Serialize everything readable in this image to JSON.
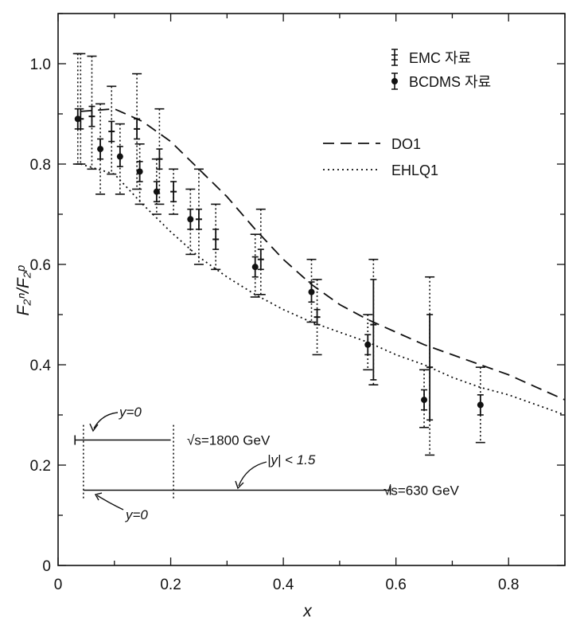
{
  "chart_data": {
    "type": "scatter",
    "xlabel": "x",
    "ylabel": "F₂ⁿ/F₂ᵖ",
    "xlim": [
      0,
      0.9
    ],
    "ylim": [
      0,
      1.1
    ],
    "x_ticks": [
      "0",
      "0.2",
      "0.4",
      "0.6",
      "0.8"
    ],
    "y_ticks": [
      "0",
      "0.2",
      "0.4",
      "0.6",
      "0.8",
      "1.0"
    ],
    "grid": false,
    "legend_position": "top-right",
    "series": [
      {
        "name": "EMC 자료",
        "marker": "bar",
        "points": [
          {
            "x": 0.04,
            "y": 0.89,
            "stat": [
              0.87,
              0.91
            ],
            "sys": [
              0.8,
              1.02
            ]
          },
          {
            "x": 0.06,
            "y": 0.895,
            "stat": [
              0.875,
              0.915
            ],
            "sys": [
              0.79,
              1.015
            ]
          },
          {
            "x": 0.095,
            "y": 0.865,
            "stat": [
              0.845,
              0.885
            ],
            "sys": [
              0.78,
              0.955
            ]
          },
          {
            "x": 0.14,
            "y": 0.87,
            "stat": [
              0.85,
              0.89
            ],
            "sys": [
              0.75,
              0.98
            ]
          },
          {
            "x": 0.18,
            "y": 0.81,
            "stat": [
              0.79,
              0.83
            ],
            "sys": [
              0.72,
              0.91
            ]
          },
          {
            "x": 0.205,
            "y": 0.745,
            "stat": [
              0.725,
              0.765
            ],
            "sys": [
              0.7,
              0.79
            ]
          },
          {
            "x": 0.25,
            "y": 0.69,
            "stat": [
              0.67,
              0.71
            ],
            "sys": [
              0.6,
              0.79
            ]
          },
          {
            "x": 0.28,
            "y": 0.65,
            "stat": [
              0.63,
              0.67
            ],
            "sys": [
              0.59,
              0.72
            ]
          },
          {
            "x": 0.36,
            "y": 0.61,
            "stat": [
              0.59,
              0.63
            ],
            "sys": [
              0.54,
              0.71
            ]
          },
          {
            "x": 0.46,
            "y": 0.495,
            "stat": [
              0.48,
              0.51
            ],
            "sys": [
              0.42,
              0.57
            ]
          },
          {
            "x": 0.56,
            "y": 0.48,
            "stat": [
              0.37,
              0.57
            ],
            "sys": [
              0.36,
              0.61
            ]
          },
          {
            "x": 0.66,
            "y": 0.395,
            "stat": [
              0.29,
              0.5
            ],
            "sys": [
              0.22,
              0.575
            ]
          }
        ]
      },
      {
        "name": "BCDMS 자료",
        "marker": "dot",
        "points": [
          {
            "x": 0.035,
            "y": 0.89,
            "stat": [
              0.87,
              0.91
            ],
            "sys": [
              0.8,
              1.02
            ]
          },
          {
            "x": 0.075,
            "y": 0.83,
            "stat": [
              0.81,
              0.85
            ],
            "sys": [
              0.74,
              0.92
            ]
          },
          {
            "x": 0.11,
            "y": 0.815,
            "stat": [
              0.795,
              0.835
            ],
            "sys": [
              0.74,
              0.88
            ]
          },
          {
            "x": 0.145,
            "y": 0.785,
            "stat": [
              0.765,
              0.805
            ],
            "sys": [
              0.72,
              0.84
            ]
          },
          {
            "x": 0.175,
            "y": 0.745,
            "stat": [
              0.725,
              0.765
            ],
            "sys": [
              0.7,
              0.81
            ]
          },
          {
            "x": 0.235,
            "y": 0.69,
            "stat": [
              0.67,
              0.71
            ],
            "sys": [
              0.62,
              0.75
            ]
          },
          {
            "x": 0.35,
            "y": 0.595,
            "stat": [
              0.575,
              0.615
            ],
            "sys": [
              0.535,
              0.66
            ]
          },
          {
            "x": 0.45,
            "y": 0.545,
            "stat": [
              0.525,
              0.565
            ],
            "sys": [
              0.485,
              0.61
            ]
          },
          {
            "x": 0.55,
            "y": 0.44,
            "stat": [
              0.42,
              0.46
            ],
            "sys": [
              0.39,
              0.5
            ]
          },
          {
            "x": 0.65,
            "y": 0.33,
            "stat": [
              0.31,
              0.35
            ],
            "sys": [
              0.275,
              0.39
            ]
          },
          {
            "x": 0.75,
            "y": 0.32,
            "stat": [
              0.3,
              0.34
            ],
            "sys": [
              0.245,
              0.395
            ]
          }
        ]
      },
      {
        "name": "DO1",
        "type": "line",
        "style": "dashed",
        "x": [
          0.04,
          0.1,
          0.15,
          0.2,
          0.25,
          0.3,
          0.35,
          0.4,
          0.45,
          0.5,
          0.55,
          0.6,
          0.65,
          0.7,
          0.75,
          0.8,
          0.85,
          0.9
        ],
        "y": [
          0.905,
          0.91,
          0.885,
          0.845,
          0.79,
          0.735,
          0.67,
          0.61,
          0.56,
          0.52,
          0.49,
          0.465,
          0.44,
          0.42,
          0.4,
          0.38,
          0.355,
          0.33
        ]
      },
      {
        "name": "EHLQ1",
        "type": "line",
        "style": "dotted",
        "x": [
          0.04,
          0.1,
          0.15,
          0.2,
          0.25,
          0.3,
          0.35,
          0.4,
          0.45,
          0.5,
          0.55,
          0.6,
          0.65,
          0.7,
          0.75,
          0.8,
          0.85,
          0.9
        ],
        "y": [
          0.8,
          0.78,
          0.72,
          0.665,
          0.615,
          0.575,
          0.54,
          0.51,
          0.485,
          0.465,
          0.445,
          0.42,
          0.4,
          0.375,
          0.355,
          0.34,
          0.32,
          0.3
        ]
      }
    ],
    "annotations": {
      "top_range": {
        "x_start": 0.03,
        "x_end": 0.2,
        "y": 0.25,
        "label": "√s=1800 GeV",
        "y_label": "y=0"
      },
      "bottom_range": {
        "x_start": 0.045,
        "x_end": 0.59,
        "y": 0.15,
        "label": "√s=630 GeV",
        "y_label": "y=0",
        "cut_label": "|y| < 1.5"
      },
      "dotted_verticals_x": [
        0.045,
        0.205
      ]
    }
  }
}
